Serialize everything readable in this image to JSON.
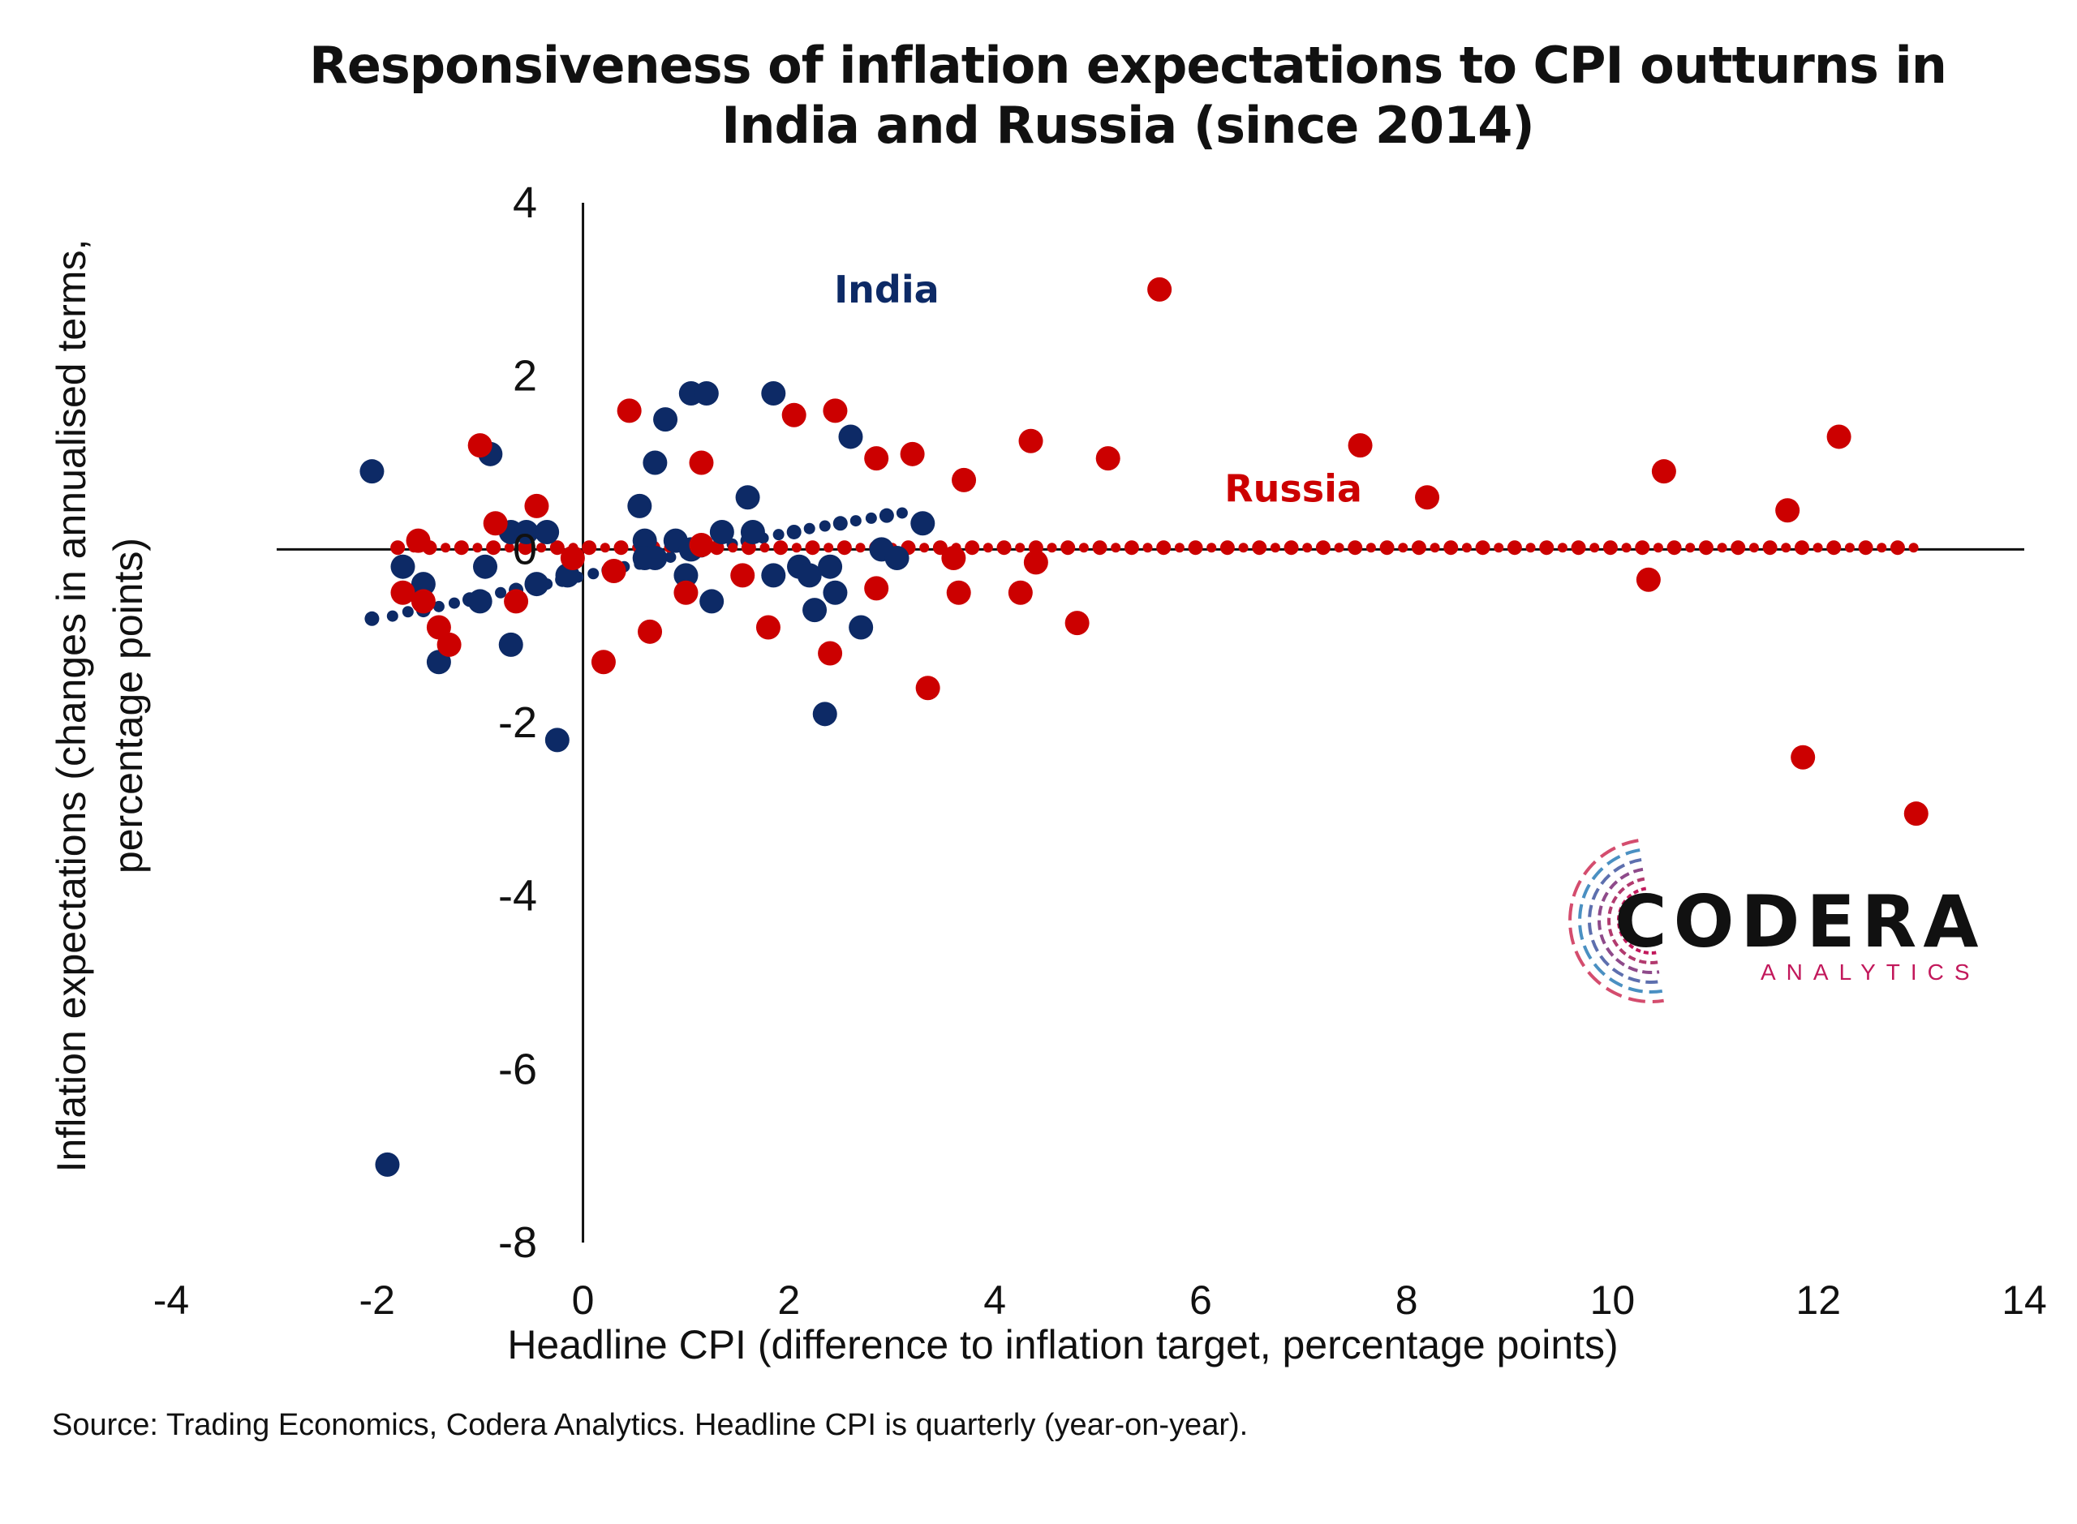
{
  "chart_data": {
    "type": "scatter",
    "title": "Responsiveness of inflation expectations to CPI outturns in India and Russia (since 2014)",
    "xlabel": "Headline CPI (difference to inflation target, percentage points)",
    "ylabel_line1": "Inflation expectations (changes in annualised terms,",
    "ylabel_line2": "percentage points)",
    "xlim": [
      -4,
      14
    ],
    "ylim": [
      -8,
      4
    ],
    "xticks": [
      "-4",
      "-2",
      "0",
      "2",
      "4",
      "6",
      "8",
      "10",
      "12",
      "14"
    ],
    "yticks": [
      "4",
      "2",
      "0",
      "-2",
      "-4",
      "-6",
      "-8"
    ],
    "grid": false,
    "series": [
      {
        "name": "India",
        "color": "#0d2a66",
        "points": [
          [
            -2.05,
            0.9
          ],
          [
            -1.9,
            -7.1
          ],
          [
            -1.75,
            -0.2
          ],
          [
            -1.55,
            -0.4
          ],
          [
            -1.4,
            -1.3
          ],
          [
            -1.0,
            -0.6
          ],
          [
            -0.95,
            -0.2
          ],
          [
            -0.9,
            1.1
          ],
          [
            -0.7,
            0.2
          ],
          [
            -0.7,
            -1.1
          ],
          [
            -0.55,
            0.2
          ],
          [
            -0.45,
            -0.4
          ],
          [
            -0.35,
            0.2
          ],
          [
            -0.25,
            -2.2
          ],
          [
            -0.15,
            -0.3
          ],
          [
            0.55,
            0.5
          ],
          [
            0.6,
            0.1
          ],
          [
            0.6,
            -0.1
          ],
          [
            0.7,
            -0.1
          ],
          [
            0.7,
            1.0
          ],
          [
            0.8,
            1.5
          ],
          [
            0.9,
            0.1
          ],
          [
            1.0,
            -0.3
          ],
          [
            1.05,
            1.8
          ],
          [
            1.05,
            0.0
          ],
          [
            1.2,
            1.8
          ],
          [
            1.25,
            -0.6
          ],
          [
            1.35,
            0.2
          ],
          [
            1.6,
            0.6
          ],
          [
            1.65,
            0.2
          ],
          [
            1.85,
            1.8
          ],
          [
            1.85,
            -0.3
          ],
          [
            2.1,
            -0.2
          ],
          [
            2.2,
            -0.3
          ],
          [
            2.25,
            -0.7
          ],
          [
            2.35,
            -1.9
          ],
          [
            2.4,
            -0.2
          ],
          [
            2.45,
            -0.5
          ],
          [
            2.6,
            1.3
          ],
          [
            2.7,
            -0.9
          ],
          [
            2.9,
            0.0
          ],
          [
            3.05,
            -0.1
          ],
          [
            3.3,
            0.3
          ]
        ],
        "trend": [
          [
            -2.05,
            -0.8
          ],
          [
            -1.85,
            -0.77
          ],
          [
            -1.7,
            -0.72
          ],
          [
            -1.55,
            -0.7
          ],
          [
            -1.4,
            -0.66
          ],
          [
            -1.25,
            -0.62
          ],
          [
            -1.1,
            -0.58
          ],
          [
            -0.95,
            -0.55
          ],
          [
            -0.8,
            -0.5
          ],
          [
            -0.65,
            -0.47
          ],
          [
            -0.5,
            -0.43
          ],
          [
            -0.35,
            -0.4
          ],
          [
            -0.2,
            -0.35
          ],
          [
            -0.05,
            -0.32
          ],
          [
            0.1,
            -0.28
          ],
          [
            0.25,
            -0.24
          ],
          [
            0.4,
            -0.2
          ],
          [
            0.55,
            -0.17
          ],
          [
            0.7,
            -0.13
          ],
          [
            0.85,
            -0.09
          ],
          [
            1.0,
            -0.05
          ],
          [
            1.15,
            -0.01
          ],
          [
            1.3,
            0.02
          ],
          [
            1.45,
            0.06
          ],
          [
            1.6,
            0.1
          ],
          [
            1.75,
            0.13
          ],
          [
            1.9,
            0.17
          ],
          [
            2.05,
            0.2
          ],
          [
            2.2,
            0.24
          ],
          [
            2.35,
            0.27
          ],
          [
            2.5,
            0.3
          ],
          [
            2.65,
            0.33
          ],
          [
            2.8,
            0.36
          ],
          [
            2.95,
            0.39
          ],
          [
            3.1,
            0.42
          ]
        ]
      },
      {
        "name": "Russia",
        "color": "#cc0000",
        "points": [
          [
            -1.75,
            -0.5
          ],
          [
            -1.6,
            0.1
          ],
          [
            -1.55,
            -0.6
          ],
          [
            -1.4,
            -0.9
          ],
          [
            -1.3,
            -1.1
          ],
          [
            -1.0,
            1.2
          ],
          [
            -0.85,
            0.3
          ],
          [
            -0.65,
            -0.6
          ],
          [
            -0.45,
            0.5
          ],
          [
            -0.1,
            -0.1
          ],
          [
            0.2,
            -1.3
          ],
          [
            0.3,
            -0.25
          ],
          [
            0.45,
            1.6
          ],
          [
            0.65,
            -0.95
          ],
          [
            1.0,
            -0.5
          ],
          [
            1.15,
            1.0
          ],
          [
            1.15,
            0.05
          ],
          [
            1.55,
            -0.3
          ],
          [
            1.8,
            -0.9
          ],
          [
            2.05,
            1.55
          ],
          [
            2.4,
            -1.2
          ],
          [
            2.45,
            1.6
          ],
          [
            2.85,
            1.05
          ],
          [
            2.85,
            -0.45
          ],
          [
            3.2,
            1.1
          ],
          [
            3.35,
            -1.6
          ],
          [
            3.6,
            -0.1
          ],
          [
            3.65,
            -0.5
          ],
          [
            3.7,
            0.8
          ],
          [
            4.25,
            -0.5
          ],
          [
            4.35,
            1.25
          ],
          [
            4.4,
            -0.15
          ],
          [
            4.8,
            -0.85
          ],
          [
            5.1,
            1.05
          ],
          [
            5.6,
            3.0
          ],
          [
            7.55,
            1.2
          ],
          [
            8.2,
            0.6
          ],
          [
            10.35,
            -0.35
          ],
          [
            10.5,
            0.9
          ],
          [
            11.7,
            0.45
          ],
          [
            11.85,
            -2.4
          ],
          [
            12.2,
            1.3
          ],
          [
            12.95,
            -3.05
          ]
        ],
        "trend_start": -1.8,
        "trend_end": 12.95,
        "trend_step": 0.155,
        "trend_y": 0.02
      }
    ],
    "annotations": [
      {
        "text": "India",
        "x": 2.95,
        "y": 2.85,
        "color": "#0d2a66"
      },
      {
        "text": "Russia",
        "x": 6.9,
        "y": 0.55,
        "color": "#cc0000"
      }
    ],
    "source": "Source: Trading Economics, Codera Analytics. Headline CPI is quarterly (year-on-year)."
  },
  "logo": {
    "name": "CODERA",
    "sub": "ANALYTICS"
  }
}
